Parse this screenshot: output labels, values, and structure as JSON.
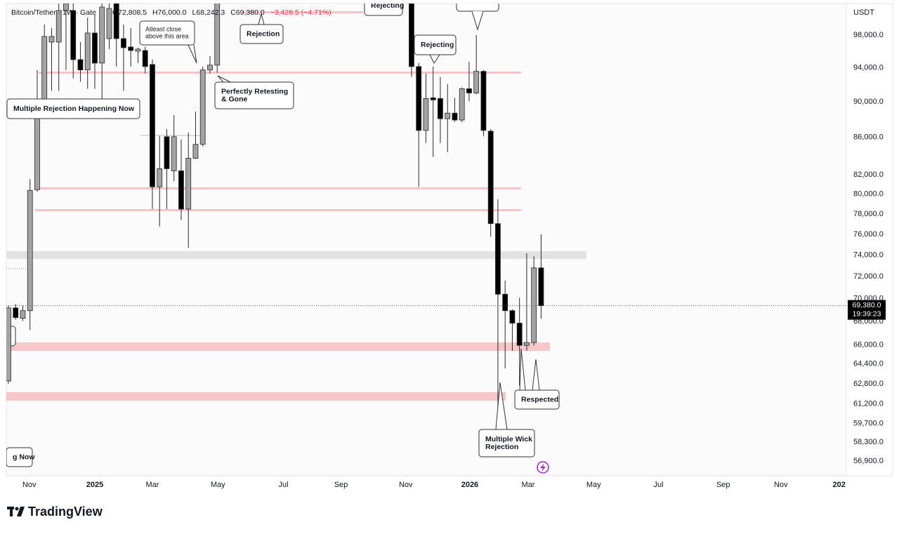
{
  "chart_data": {
    "type": "candlestick",
    "title": "Bitcoin/Tether · 1W · Gate",
    "ohlc_legend": [
      "O72,808.5",
      "H76,000.0",
      "L68,242.3",
      "C69,380.0",
      "−3,428.5 (−4.71%)"
    ],
    "y_axis_label": "USDT",
    "log_scale": true,
    "grid": false,
    "up_color": "#a3a3a3",
    "down_color": "#000000",
    "open": [
      63020,
      69180,
      68270,
      68940,
      80450,
      89900,
      97130,
      97130,
      101120,
      101120,
      94980,
      93730,
      98260,
      94560,
      97560,
      102030,
      97560,
      96520,
      96000,
      96090,
      94390,
      80740,
      86080,
      82410,
      82410,
      78480,
      83740,
      85240,
      93730,
      94310,
      null,
      null,
      null,
      null,
      null,
      null,
      null,
      null,
      null,
      null,
      null,
      null,
      null,
      null,
      null,
      null,
      null,
      null,
      null,
      null,
      null,
      null,
      null,
      null,
      null,
      null,
      102030,
      94140,
      86770,
      90460,
      90380,
      88080,
      88710,
      87930,
      91510,
      91020,
      93570,
      86690,
      77040,
      70400,
      68940,
      67850,
      65950,
      66190,
      72808.5
    ],
    "high": [
      69360,
      69540,
      69360,
      81530,
      93730,
      99330,
      98880,
      102030,
      102490,
      102030,
      97130,
      100220,
      100670,
      102030,
      102030,
      102490,
      99330,
      98880,
      96430,
      96520,
      94980,
      86150,
      86920,
      88480,
      85770,
      86540,
      88870,
      94140,
      95400,
      102490,
      null,
      null,
      null,
      null,
      null,
      null,
      null,
      null,
      null,
      null,
      null,
      null,
      null,
      null,
      null,
      null,
      null,
      null,
      null,
      null,
      null,
      null,
      null,
      null,
      null,
      null,
      102490,
      94560,
      93320,
      94140,
      92900,
      92080,
      90460,
      91670,
      94720,
      98000,
      93730,
      86920,
      79460,
      71650,
      69060,
      70090,
      74170,
      73900,
      76000
    ],
    "low": [
      62800,
      68150,
      68030,
      67250,
      80240,
      88870,
      91270,
      91270,
      93730,
      92740,
      92330,
      91510,
      91510,
      89660,
      96260,
      94140,
      91270,
      94140,
      94560,
      93320,
      78480,
      76770,
      78480,
      81310,
      77380,
      74690,
      83670,
      85010,
      93320,
      93400,
      null,
      null,
      null,
      null,
      null,
      null,
      null,
      null,
      null,
      null,
      null,
      null,
      null,
      null,
      null,
      null,
      null,
      null,
      null,
      null,
      null,
      null,
      null,
      null,
      null,
      null,
      92900,
      80740,
      85390,
      83890,
      85390,
      84400,
      87690,
      87690,
      90060,
      90860,
      86150,
      75760,
      60180,
      64040,
      65490,
      62630,
      65490,
      65950,
      68242.3
    ],
    "close": [
      69180,
      68330,
      68940,
      80380,
      89900,
      97820,
      97820,
      101120,
      102030,
      94980,
      93730,
      98260,
      94560,
      101570,
      101390,
      97560,
      96430,
      96090,
      96260,
      94140,
      80740,
      82630,
      82630,
      86080,
      78480,
      83740,
      85240,
      93730,
      94310,
      102490,
      null,
      null,
      null,
      null,
      null,
      null,
      null,
      null,
      null,
      null,
      null,
      null,
      null,
      null,
      null,
      null,
      null,
      null,
      null,
      null,
      null,
      null,
      null,
      null,
      null,
      null,
      94140,
      86770,
      90380,
      90220,
      88080,
      88710,
      87930,
      91510,
      91020,
      93570,
      86770,
      77040,
      70400,
      68940,
      67850,
      65950,
      66190,
      72808.5,
      69380
    ],
    "xlim": [
      -0.29,
      116.4
    ],
    "xticks": [
      {
        "value": 2.9,
        "label": "Nov"
      },
      {
        "value": 12,
        "label": "2025"
      },
      {
        "value": 20,
        "label": "Mar"
      },
      {
        "value": 29.1,
        "label": "May"
      },
      {
        "value": 38.2,
        "label": "Jul"
      },
      {
        "value": 46.2,
        "label": "Sep"
      },
      {
        "value": 55.2,
        "label": "Nov"
      },
      {
        "value": 64.1,
        "label": "2026"
      },
      {
        "value": 72.2,
        "label": "Mar"
      },
      {
        "value": 81.3,
        "label": "May"
      },
      {
        "value": 90.3,
        "label": "Jul"
      },
      {
        "value": 99.3,
        "label": "Sep"
      },
      {
        "value": 107.3,
        "label": "Nov"
      },
      {
        "value": 115.4,
        "label": "202"
      }
    ],
    "ylim": [
      55840,
      102030
    ],
    "yticks": [
      {
        "value": 98000,
        "label": "98,000.0"
      },
      {
        "value": 94000,
        "label": "94,000.0"
      },
      {
        "value": 90000,
        "label": "90,000.0"
      },
      {
        "value": 86000,
        "label": "86,000.0"
      },
      {
        "value": 82000,
        "label": "82,000.0"
      },
      {
        "value": 80000,
        "label": "80,000.0"
      },
      {
        "value": 78000,
        "label": "78,000.0"
      },
      {
        "value": 76000,
        "label": "76,000.0"
      },
      {
        "value": 74000,
        "label": "74,000.0"
      },
      {
        "value": 72000,
        "label": "72,000.0"
      },
      {
        "value": 70000,
        "label": "70,000.0"
      },
      {
        "value": 68000,
        "label": "68,000.0"
      },
      {
        "value": 66000,
        "label": "66,000.0"
      },
      {
        "value": 64400,
        "label": "64,400.0"
      },
      {
        "value": 62800,
        "label": "62,800.0"
      },
      {
        "value": 61200,
        "label": "61,200.0"
      },
      {
        "value": 59700,
        "label": "59,700.0"
      },
      {
        "value": 58300,
        "label": "58,300.0"
      },
      {
        "value": 56900,
        "label": "56,900.0"
      }
    ],
    "last_price": {
      "value": 69380,
      "label": "69,380.0"
    },
    "countdown": "19:39:23",
    "annotations": [
      {
        "lines": [
          "Rejecting"
        ]
      },
      {
        "lines": [
          "Atleast close",
          "above this area"
        ]
      },
      {
        "lines": [
          "Rejection"
        ]
      },
      {
        "lines": [
          "Rejecting"
        ]
      },
      {
        "lines": [
          "Multiple Rejection Happening Now"
        ]
      },
      {
        "lines": [
          "Perfectly Retesting",
          "& Gone"
        ]
      },
      {
        "lines": [
          "g Now"
        ]
      },
      {
        "lines": [
          "Respected"
        ]
      },
      {
        "lines": [
          "Multiple Wick",
          "Rejection"
        ]
      }
    ]
  },
  "footer": {
    "logo": "TradingView"
  }
}
